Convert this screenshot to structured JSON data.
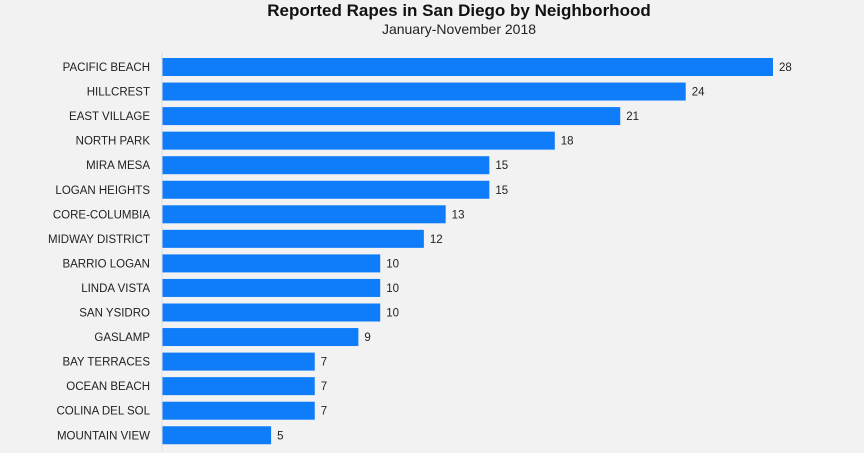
{
  "chart_data": {
    "type": "bar",
    "orientation": "horizontal",
    "title": "Reported Rapes in San Diego by Neighborhood",
    "subtitle": "January-November 2018",
    "xlabel": "",
    "ylabel": "",
    "categories": [
      "PACIFIC BEACH",
      "HILLCREST",
      "EAST VILLAGE",
      "NORTH PARK",
      "MIRA MESA",
      "LOGAN HEIGHTS",
      "CORE-COLUMBIA",
      "MIDWAY DISTRICT",
      "BARRIO LOGAN",
      "LINDA VISTA",
      "SAN YSIDRO",
      "GASLAMP",
      "BAY TERRACES",
      "OCEAN BEACH",
      "COLINA DEL SOL",
      "MOUNTAIN VIEW"
    ],
    "values": [
      28,
      24,
      21,
      18,
      15,
      15,
      13,
      12,
      10,
      10,
      10,
      9,
      7,
      7,
      7,
      5
    ],
    "xlim": [
      0,
      28
    ],
    "grid": false,
    "legend": "none",
    "data_labels": true,
    "bar_color": "#0f7cf9",
    "background_color": "#f2f2f2"
  }
}
